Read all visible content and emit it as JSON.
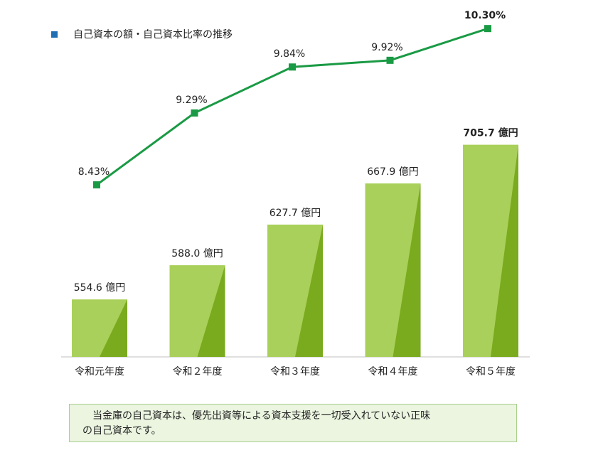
{
  "title": "自己資本の額・自己資本比率の推移",
  "colors": {
    "bar_light": "#a9d05a",
    "bar_dark": "#7aaa1e",
    "line": "#1a9a44",
    "title_marker": "#1f6fb5",
    "note_bg": "#ebf5e0",
    "note_border": "#a9d08e"
  },
  "chart_data": {
    "type": "bar",
    "categories": [
      "令和元年度",
      "令和２年度",
      "令和３年度",
      "令和４年度",
      "令和５年度"
    ],
    "series": [
      {
        "values": [
          554.6,
          588.0,
          627.7,
          667.9,
          705.7
        ],
        "labels": [
          "554.6 億円",
          "588.0 億円",
          "627.7 億円",
          "667.9 億円",
          "705.7 億円"
        ],
        "type": "bar"
      },
      {
        "values": [
          8.43,
          9.29,
          9.84,
          9.92,
          10.3
        ],
        "labels": [
          "8.43%",
          "9.29%",
          "9.84%",
          "9.92%",
          "10.30%"
        ],
        "type": "line"
      }
    ],
    "bold_last_label": true,
    "grid": false,
    "legend": "none"
  },
  "note": {
    "line1": "当金庫の自己資本は、優先出資等による資本支援を一切受入れていない正味",
    "line2": "の自己資本です。"
  }
}
